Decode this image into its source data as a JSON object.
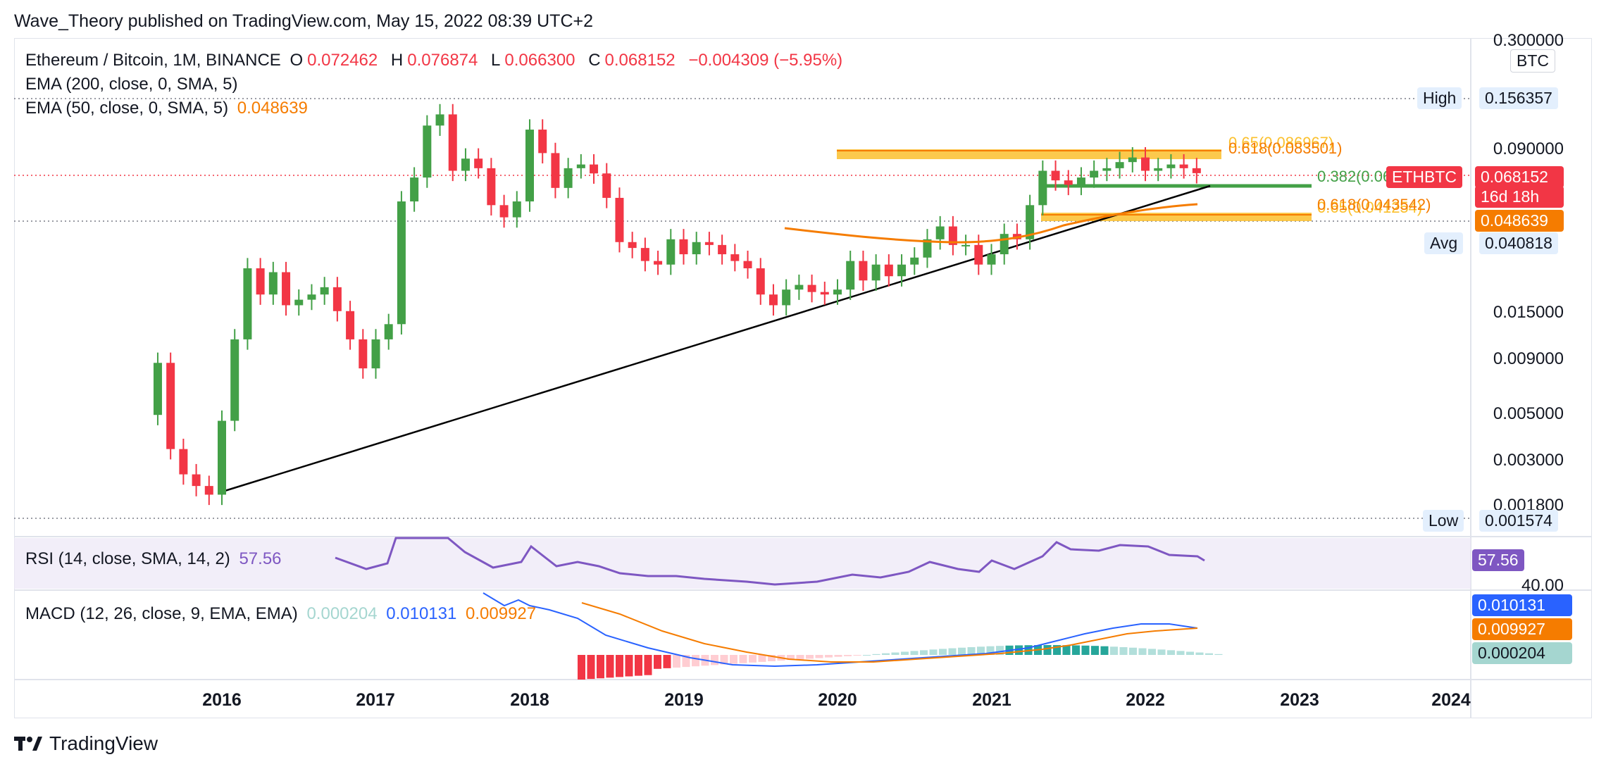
{
  "header": {
    "text": "Wave_Theory published on TradingView.com, May 15, 2022 08:39 UTC+2"
  },
  "legend": {
    "symbol": "Ethereum / Bitcoin, 1M, BINANCE",
    "o_label": "O",
    "o": "0.072462",
    "h_label": "H",
    "h": "0.076874",
    "l_label": "L",
    "l": "0.066300",
    "c_label": "C",
    "c": "0.068152",
    "change": "−0.004309 (−5.95%)",
    "ema200": "EMA (200, close, 0, SMA, 5)",
    "ema50": "EMA (50, close, 0, SMA, 5)",
    "ema50_value": "0.048639",
    "rsi": "RSI (14, close, SMA, 14, 2)",
    "rsi_value": "57.56",
    "macd": "MACD (12, 26, close, 9, EMA, EMA)",
    "macd_hist": "0.000204",
    "macd_line": "0.010131",
    "macd_signal": "0.009927"
  },
  "price_axis": {
    "unit": "BTC",
    "ticks": [
      "0.300000",
      "0.090000",
      "0.015000",
      "0.009000",
      "0.005000",
      "0.003000",
      "0.001800"
    ],
    "high_label": "High",
    "high_value": "0.156357",
    "low_label": "Low",
    "low_value": "0.001574",
    "avg_label": "Avg",
    "avg_value": "0.040818",
    "last_symbol": "ETHBTC",
    "last_price": "0.068152",
    "countdown": "16d 18h",
    "ema50_badge": "0.048639",
    "rsi_badge": "57.56",
    "rsi_tick": "40.00",
    "macd_badge": "0.010131",
    "signal_badge": "0.009927",
    "hist_badge": "0.000204"
  },
  "fib_labels": {
    "f65": "0.65(0.086967)",
    "f618_top": "0.618(0.083501)",
    "f382": "0.382(0.06…",
    "f618_low": "0.618(0.043542)",
    "f65_low": "0.65(0.041254)"
  },
  "colors": {
    "up": "#43a047",
    "down": "#f23645",
    "ema": "#f57c00",
    "rsi": "#7e57c2",
    "macd": "#2962ff",
    "signal": "#f57c00"
  },
  "footer": {
    "brand": "TradingView"
  },
  "chart_data": {
    "type": "candlestick",
    "title": "Ethereum / Bitcoin, 1M, BINANCE",
    "x_ticks": [
      "2016",
      "2017",
      "2018",
      "2019",
      "2020",
      "2021",
      "2022",
      "2023",
      "2024"
    ],
    "y_scale": "log",
    "ylim": [
      0.0015,
      0.3
    ],
    "candles_approx": [
      {
        "date": "2015-08",
        "o": 0.0048,
        "c": 0.0085
      },
      {
        "date": "2015-09",
        "o": 0.0085,
        "c": 0.0033
      },
      {
        "date": "2015-10",
        "o": 0.0033,
        "c": 0.0025
      },
      {
        "date": "2015-11",
        "o": 0.0025,
        "c": 0.0022
      },
      {
        "date": "2015-12",
        "o": 0.0022,
        "c": 0.002
      },
      {
        "date": "2016-01",
        "o": 0.002,
        "c": 0.0045
      },
      {
        "date": "2016-02",
        "o": 0.0045,
        "c": 0.011
      },
      {
        "date": "2016-03",
        "o": 0.011,
        "c": 0.024
      },
      {
        "date": "2016-04",
        "o": 0.024,
        "c": 0.018
      },
      {
        "date": "2016-05",
        "o": 0.018,
        "c": 0.023
      },
      {
        "date": "2016-06",
        "o": 0.023,
        "c": 0.016
      },
      {
        "date": "2016-07",
        "o": 0.016,
        "c": 0.017
      },
      {
        "date": "2016-08",
        "o": 0.017,
        "c": 0.018
      },
      {
        "date": "2016-09",
        "o": 0.018,
        "c": 0.0195
      },
      {
        "date": "2016-10",
        "o": 0.0195,
        "c": 0.015
      },
      {
        "date": "2016-11",
        "o": 0.015,
        "c": 0.011
      },
      {
        "date": "2016-12",
        "o": 0.011,
        "c": 0.008
      },
      {
        "date": "2017-01",
        "o": 0.008,
        "c": 0.011
      },
      {
        "date": "2017-02",
        "o": 0.011,
        "c": 0.013
      },
      {
        "date": "2017-03",
        "o": 0.013,
        "c": 0.05
      },
      {
        "date": "2017-04",
        "o": 0.05,
        "c": 0.065
      },
      {
        "date": "2017-05",
        "o": 0.065,
        "c": 0.115
      },
      {
        "date": "2017-06",
        "o": 0.115,
        "c": 0.13
      },
      {
        "date": "2017-07",
        "o": 0.13,
        "c": 0.07
      },
      {
        "date": "2017-08",
        "o": 0.07,
        "c": 0.08
      },
      {
        "date": "2017-09",
        "o": 0.08,
        "c": 0.072
      },
      {
        "date": "2017-10",
        "o": 0.072,
        "c": 0.048
      },
      {
        "date": "2017-11",
        "o": 0.048,
        "c": 0.042
      },
      {
        "date": "2017-12",
        "o": 0.042,
        "c": 0.05
      },
      {
        "date": "2018-01",
        "o": 0.05,
        "c": 0.11
      },
      {
        "date": "2018-02",
        "o": 0.11,
        "c": 0.085
      },
      {
        "date": "2018-03",
        "o": 0.085,
        "c": 0.058
      },
      {
        "date": "2018-04",
        "o": 0.058,
        "c": 0.072
      },
      {
        "date": "2018-05",
        "o": 0.072,
        "c": 0.075
      },
      {
        "date": "2018-06",
        "o": 0.075,
        "c": 0.068
      },
      {
        "date": "2018-07",
        "o": 0.068,
        "c": 0.052
      },
      {
        "date": "2018-08",
        "o": 0.052,
        "c": 0.032
      },
      {
        "date": "2018-09",
        "o": 0.032,
        "c": 0.03
      },
      {
        "date": "2018-10",
        "o": 0.03,
        "c": 0.026
      },
      {
        "date": "2018-11",
        "o": 0.026,
        "c": 0.025
      },
      {
        "date": "2018-12",
        "o": 0.025,
        "c": 0.033
      },
      {
        "date": "2019-01",
        "o": 0.033,
        "c": 0.028
      },
      {
        "date": "2019-02",
        "o": 0.028,
        "c": 0.032
      },
      {
        "date": "2019-03",
        "o": 0.032,
        "c": 0.031
      },
      {
        "date": "2019-04",
        "o": 0.031,
        "c": 0.028
      },
      {
        "date": "2019-05",
        "o": 0.028,
        "c": 0.026
      },
      {
        "date": "2019-06",
        "o": 0.026,
        "c": 0.024
      },
      {
        "date": "2019-07",
        "o": 0.024,
        "c": 0.018
      },
      {
        "date": "2019-08",
        "o": 0.018,
        "c": 0.016
      },
      {
        "date": "2019-09",
        "o": 0.016,
        "c": 0.019
      },
      {
        "date": "2019-10",
        "o": 0.019,
        "c": 0.02
      },
      {
        "date": "2019-11",
        "o": 0.02,
        "c": 0.0185
      },
      {
        "date": "2019-12",
        "o": 0.0185,
        "c": 0.018
      },
      {
        "date": "2020-01",
        "o": 0.018,
        "c": 0.019
      },
      {
        "date": "2020-02",
        "o": 0.019,
        "c": 0.026
      },
      {
        "date": "2020-03",
        "o": 0.026,
        "c": 0.021
      },
      {
        "date": "2020-04",
        "o": 0.021,
        "c": 0.025
      },
      {
        "date": "2020-05",
        "o": 0.025,
        "c": 0.022
      },
      {
        "date": "2020-06",
        "o": 0.022,
        "c": 0.025
      },
      {
        "date": "2020-07",
        "o": 0.025,
        "c": 0.027
      },
      {
        "date": "2020-08",
        "o": 0.027,
        "c": 0.033
      },
      {
        "date": "2020-09",
        "o": 0.033,
        "c": 0.038
      },
      {
        "date": "2020-10",
        "o": 0.038,
        "c": 0.031
      },
      {
        "date": "2020-11",
        "o": 0.031,
        "c": 0.031
      },
      {
        "date": "2020-12",
        "o": 0.031,
        "c": 0.025
      },
      {
        "date": "2021-01",
        "o": 0.025,
        "c": 0.028
      },
      {
        "date": "2021-02",
        "o": 0.028,
        "c": 0.035
      },
      {
        "date": "2021-03",
        "o": 0.035,
        "c": 0.033
      },
      {
        "date": "2021-04",
        "o": 0.033,
        "c": 0.048
      },
      {
        "date": "2021-05",
        "o": 0.048,
        "c": 0.07
      },
      {
        "date": "2021-06",
        "o": 0.07,
        "c": 0.063
      },
      {
        "date": "2021-07",
        "o": 0.063,
        "c": 0.06
      },
      {
        "date": "2021-08",
        "o": 0.06,
        "c": 0.065
      },
      {
        "date": "2021-09",
        "o": 0.065,
        "c": 0.07
      },
      {
        "date": "2021-10",
        "o": 0.07,
        "c": 0.072
      },
      {
        "date": "2021-11",
        "o": 0.072,
        "c": 0.077
      },
      {
        "date": "2021-12",
        "o": 0.077,
        "c": 0.081
      },
      {
        "date": "2022-01",
        "o": 0.081,
        "c": 0.07
      },
      {
        "date": "2022-02",
        "o": 0.07,
        "c": 0.072
      },
      {
        "date": "2022-03",
        "o": 0.072,
        "c": 0.075
      },
      {
        "date": "2022-04",
        "o": 0.075,
        "c": 0.072
      },
      {
        "date": "2022-05",
        "o": 0.072,
        "c": 0.0682
      }
    ]
  }
}
